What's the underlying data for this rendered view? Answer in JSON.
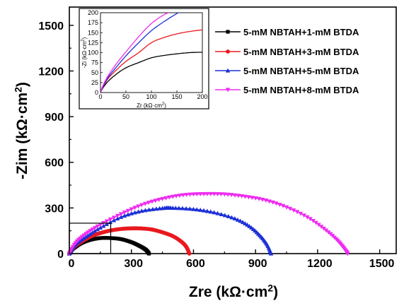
{
  "chart_data": {
    "type": "scatter",
    "xlabel": "Zre (kΩ·cm²)",
    "ylabel": "-Zim (kΩ·cm²)",
    "xlim": [
      0,
      1580
    ],
    "ylim": [
      0,
      1620
    ],
    "xticks": [
      "0",
      "300",
      "600",
      "900",
      "1200",
      "1500"
    ],
    "yticks": [
      "0",
      "300",
      "600",
      "900",
      "1200",
      "1500"
    ],
    "legend_position": "top-right",
    "series": [
      {
        "name": "5-mM NBTAH+1-mM BTDA",
        "color": "#000000",
        "marker": "square",
        "x": [
          0,
          15,
          30,
          60,
          100,
          150,
          200,
          250,
          300,
          340,
          370,
          385
        ],
        "y": [
          0,
          30,
          45,
          70,
          90,
          102,
          102,
          95,
          75,
          50,
          25,
          0
        ]
      },
      {
        "name": "5-mM NBTAH+3-mM BTDA",
        "color": "#e8191f",
        "marker": "circle",
        "x": [
          0,
          20,
          50,
          100,
          150,
          200,
          250,
          300,
          350,
          400,
          450,
          500,
          540,
          565,
          580
        ],
        "y": [
          0,
          40,
          70,
          110,
          135,
          152,
          162,
          166,
          165,
          158,
          140,
          115,
          80,
          45,
          0
        ]
      },
      {
        "name": "5-mM NBTAH+5-mM BTDA",
        "color": "#1c2fd6",
        "marker": "triangle",
        "x": [
          0,
          30,
          80,
          150,
          250,
          350,
          450,
          500,
          600,
          700,
          800,
          870,
          920,
          955,
          975
        ],
        "y": [
          0,
          60,
          110,
          170,
          240,
          280,
          298,
          300,
          292,
          270,
          230,
          180,
          120,
          60,
          0
        ]
      },
      {
        "name": "5-mM NBTAH+8-mM BTDA",
        "color": "#ee2cf0",
        "marker": "triangle-down",
        "x": [
          0,
          30,
          80,
          150,
          250,
          350,
          450,
          550,
          650,
          750,
          850,
          950,
          1050,
          1150,
          1230,
          1290,
          1325,
          1345
        ],
        "y": [
          0,
          70,
          130,
          190,
          260,
          320,
          360,
          385,
          392,
          390,
          375,
          350,
          305,
          240,
          165,
          95,
          40,
          0
        ]
      }
    ],
    "inset": {
      "xlabel": "Zr (kΩ·cm²)",
      "ylabel": "-Zi (kΩ·cm²)",
      "xlim": [
        0,
        200
      ],
      "ylim": [
        0,
        200
      ],
      "xticks": [
        "0",
        "50",
        "100",
        "150",
        "200"
      ],
      "yticks": [
        "0",
        "25",
        "50",
        "75",
        "100",
        "125",
        "150",
        "175",
        "200"
      ],
      "series": [
        {
          "color": "#000000",
          "x": [
            0,
            5,
            15,
            30,
            50,
            75,
            100,
            125,
            150,
            175,
            200
          ],
          "y": [
            0,
            12,
            28,
            45,
            62,
            75,
            87,
            93,
            97,
            100,
            101
          ]
        },
        {
          "color": "#e8191f",
          "x": [
            0,
            5,
            15,
            30,
            50,
            75,
            100,
            125,
            150,
            175,
            200
          ],
          "y": [
            0,
            14,
            35,
            55,
            78,
            100,
            125,
            138,
            147,
            153,
            157
          ]
        },
        {
          "color": "#1c2fd6",
          "x": [
            0,
            5,
            15,
            30,
            50,
            75,
            100,
            125,
            150,
            160
          ],
          "y": [
            0,
            15,
            38,
            62,
            92,
            125,
            155,
            178,
            198,
            205
          ]
        },
        {
          "color": "#ee2cf0",
          "x": [
            0,
            5,
            15,
            30,
            50,
            75,
            100,
            125,
            150
          ],
          "y": [
            0,
            18,
            42,
            70,
            102,
            140,
            173,
            195,
            208
          ]
        }
      ]
    }
  }
}
